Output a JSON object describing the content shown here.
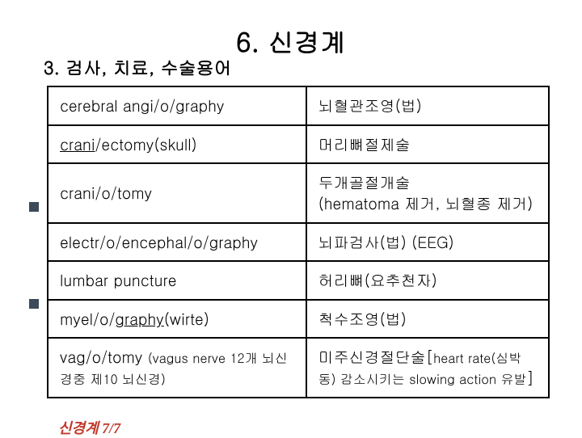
{
  "title": "6. 신경계",
  "subtitle": "3. 검사, 치료, 수술용어",
  "footer": "신경계 7/7",
  "table": {
    "rows": [
      {
        "col1_html": "cerebral angi/o/graphy",
        "col2_html": "뇌혈관조영(법)"
      },
      {
        "col1_html": "<span class=\"u\">crani</span>/ectomy(skull)",
        "col2_html": "머리뼈절제술"
      },
      {
        "col1_html": "crani/o/tomy",
        "col2_html": "두개골절개술<br>(hematoma 제거, 뇌혈종 제거)"
      },
      {
        "col1_html": "electr/o/encephal/o/graphy",
        "col2_html": "뇌파검사(법) (EEG)"
      },
      {
        "col1_html": "lumbar puncture",
        "col2_html": "허리뼈(요추천자)"
      },
      {
        "col1_html": "myel/o/<span class=\"u\">graphy</span>(wirte)",
        "col2_html": "척수조영(법)"
      },
      {
        "col1_html": "vag/o/tomy <span class=\"small\">(vagus nerve 12개 뇌신경중 제10 뇌신경)</span>",
        "col2_html": "미주신경절단술[<span class=\"small\">heart rate(심박동) 감소시키는 slowing action 유발</span>]"
      }
    ]
  }
}
